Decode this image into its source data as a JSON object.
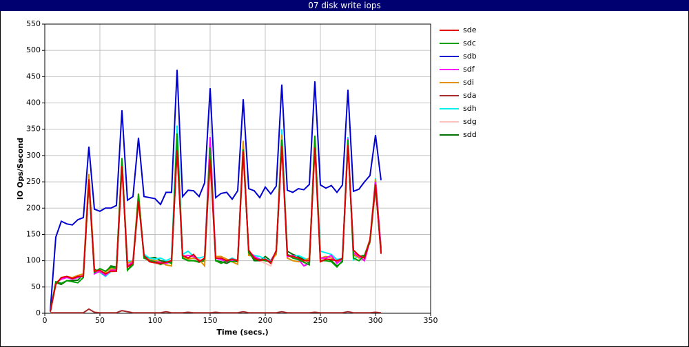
{
  "chart_data": {
    "type": "line",
    "title": "07 disk write iops",
    "x_label": "Time (secs.)",
    "y_label": "IO Ops/Second",
    "x": [
      5,
      10,
      15,
      20,
      25,
      30,
      35,
      40,
      45,
      50,
      55,
      60,
      65,
      70,
      75,
      80,
      85,
      90,
      95,
      100,
      105,
      110,
      115,
      120,
      125,
      130,
      135,
      140,
      145,
      150,
      155,
      160,
      165,
      170,
      175,
      180,
      185,
      190,
      195,
      200,
      205,
      210,
      215,
      220,
      225,
      230,
      235,
      240,
      245,
      250,
      255,
      260,
      265,
      270,
      275,
      280,
      285,
      290,
      295,
      300,
      305
    ],
    "xlim": [
      0,
      350
    ],
    "xticks": [
      0,
      50,
      100,
      150,
      200,
      250,
      300,
      350
    ],
    "ylim": [
      0,
      550
    ],
    "yticks": [
      0,
      50,
      100,
      150,
      200,
      250,
      300,
      350,
      400,
      450,
      500,
      550
    ],
    "grid": true,
    "legend": "right",
    "series": [
      {
        "name": "sde",
        "color": "#e00000",
        "values": [
          3,
          55,
          68,
          70,
          66,
          70,
          70,
          255,
          80,
          82,
          75,
          80,
          80,
          280,
          88,
          95,
          213,
          110,
          98,
          96,
          95,
          97,
          100,
          310,
          110,
          105,
          112,
          98,
          105,
          293,
          105,
          105,
          100,
          103,
          100,
          308,
          120,
          105,
          100,
          103,
          95,
          120,
          318,
          110,
          108,
          105,
          100,
          100,
          315,
          98,
          103,
          102,
          100,
          104,
          320,
          120,
          110,
          105,
          140,
          245,
          113
        ]
      },
      {
        "name": "sdc",
        "color": "#00a000",
        "values": [
          3,
          60,
          57,
          62,
          60,
          58,
          68,
          248,
          78,
          85,
          80,
          88,
          85,
          295,
          82,
          92,
          227,
          105,
          100,
          98,
          93,
          98,
          95,
          342,
          105,
          100,
          100,
          97,
          103,
          315,
          100,
          95,
          100,
          98,
          102,
          312,
          115,
          103,
          102,
          100,
          98,
          118,
          330,
          112,
          105,
          102,
          97,
          92,
          338,
          100,
          100,
          98,
          88,
          100,
          330,
          105,
          100,
          110,
          135,
          240,
          118
        ]
      },
      {
        "name": "sdb",
        "color": "#0000d0",
        "values": [
          5,
          145,
          175,
          170,
          168,
          178,
          182,
          317,
          198,
          194,
          200,
          200,
          205,
          386,
          215,
          222,
          334,
          222,
          220,
          218,
          207,
          230,
          230,
          463,
          222,
          234,
          233,
          222,
          248,
          428,
          220,
          228,
          230,
          217,
          233,
          407,
          237,
          233,
          220,
          240,
          227,
          242,
          435,
          234,
          230,
          237,
          235,
          245,
          441,
          244,
          238,
          243,
          230,
          244,
          425,
          232,
          236,
          250,
          262,
          339,
          253
        ]
      },
      {
        "name": "sdf",
        "color": "#ff00ff",
        "values": [
          3,
          58,
          65,
          68,
          65,
          68,
          72,
          250,
          75,
          80,
          72,
          82,
          82,
          285,
          90,
          98,
          220,
          108,
          100,
          98,
          97,
          95,
          98,
          315,
          108,
          110,
          108,
          100,
          103,
          335,
          105,
          102,
          98,
          100,
          102,
          312,
          118,
          108,
          103,
          100,
          100,
          118,
          322,
          108,
          110,
          103,
          90,
          95,
          325,
          105,
          105,
          110,
          95,
          103,
          332,
          115,
          108,
          100,
          138,
          250,
          125
        ]
      },
      {
        "name": "sdi",
        "color": "#e09000",
        "values": [
          3,
          58,
          66,
          70,
          68,
          72,
          75,
          265,
          82,
          78,
          78,
          85,
          82,
          290,
          95,
          100,
          228,
          105,
          102,
          100,
          98,
          92,
          90,
          325,
          108,
          103,
          105,
          102,
          90,
          320,
          108,
          108,
          103,
          98,
          93,
          328,
          110,
          108,
          102,
          100,
          100,
          112,
          340,
          105,
          100,
          98,
          100,
          105,
          320,
          105,
          108,
          105,
          98,
          102,
          325,
          112,
          105,
          108,
          140,
          255,
          120
        ]
      },
      {
        "name": "sda",
        "color": "#a52a2a",
        "values": [
          1,
          1,
          1,
          1,
          1,
          1,
          1,
          8,
          2,
          1,
          1,
          1,
          1,
          5,
          3,
          1,
          1,
          1,
          1,
          1,
          1,
          3,
          1,
          1,
          1,
          2,
          1,
          1,
          1,
          1,
          2,
          1,
          1,
          1,
          1,
          3,
          1,
          1,
          1,
          1,
          1,
          1,
          3,
          1,
          1,
          1,
          1,
          1,
          2,
          1,
          1,
          1,
          1,
          1,
          3,
          1,
          1,
          1,
          1,
          2,
          1
        ]
      },
      {
        "name": "sdh",
        "color": "#00f0f0",
        "values": [
          3,
          58,
          65,
          68,
          66,
          68,
          70,
          252,
          78,
          78,
          70,
          80,
          82,
          283,
          100,
          98,
          222,
          112,
          105,
          103,
          105,
          100,
          105,
          357,
          112,
          118,
          108,
          105,
          108,
          318,
          105,
          102,
          100,
          105,
          100,
          315,
          115,
          110,
          108,
          103,
          100,
          115,
          350,
          112,
          108,
          110,
          105,
          100,
          325,
          118,
          115,
          112,
          102,
          105,
          335,
          102,
          110,
          105,
          138,
          257,
          122
        ]
      },
      {
        "name": "sdg",
        "color": "#ffc0c0",
        "values": [
          3,
          55,
          67,
          70,
          65,
          70,
          73,
          250,
          80,
          80,
          72,
          78,
          80,
          280,
          92,
          96,
          218,
          108,
          98,
          95,
          92,
          95,
          98,
          312,
          110,
          106,
          104,
          100,
          102,
          300,
          104,
          104,
          100,
          102,
          101,
          310,
          118,
          106,
          100,
          95,
          90,
          118,
          320,
          108,
          106,
          104,
          100,
          98,
          318,
          102,
          104,
          103,
          100,
          103,
          322,
          118,
          108,
          103,
          138,
          248,
          118
        ]
      },
      {
        "name": "sdd",
        "color": "#007000",
        "values": [
          3,
          58,
          55,
          62,
          62,
          63,
          74,
          258,
          84,
          78,
          78,
          90,
          88,
          290,
          82,
          95,
          222,
          108,
          105,
          106,
          100,
          98,
          96,
          335,
          105,
          100,
          100,
          98,
          100,
          310,
          100,
          98,
          95,
          100,
          98,
          305,
          118,
          100,
          100,
          108,
          100,
          115,
          325,
          118,
          112,
          108,
          102,
          95,
          332,
          100,
          105,
          100,
          90,
          98,
          328,
          110,
          108,
          110,
          140,
          242,
          115
        ]
      }
    ]
  }
}
